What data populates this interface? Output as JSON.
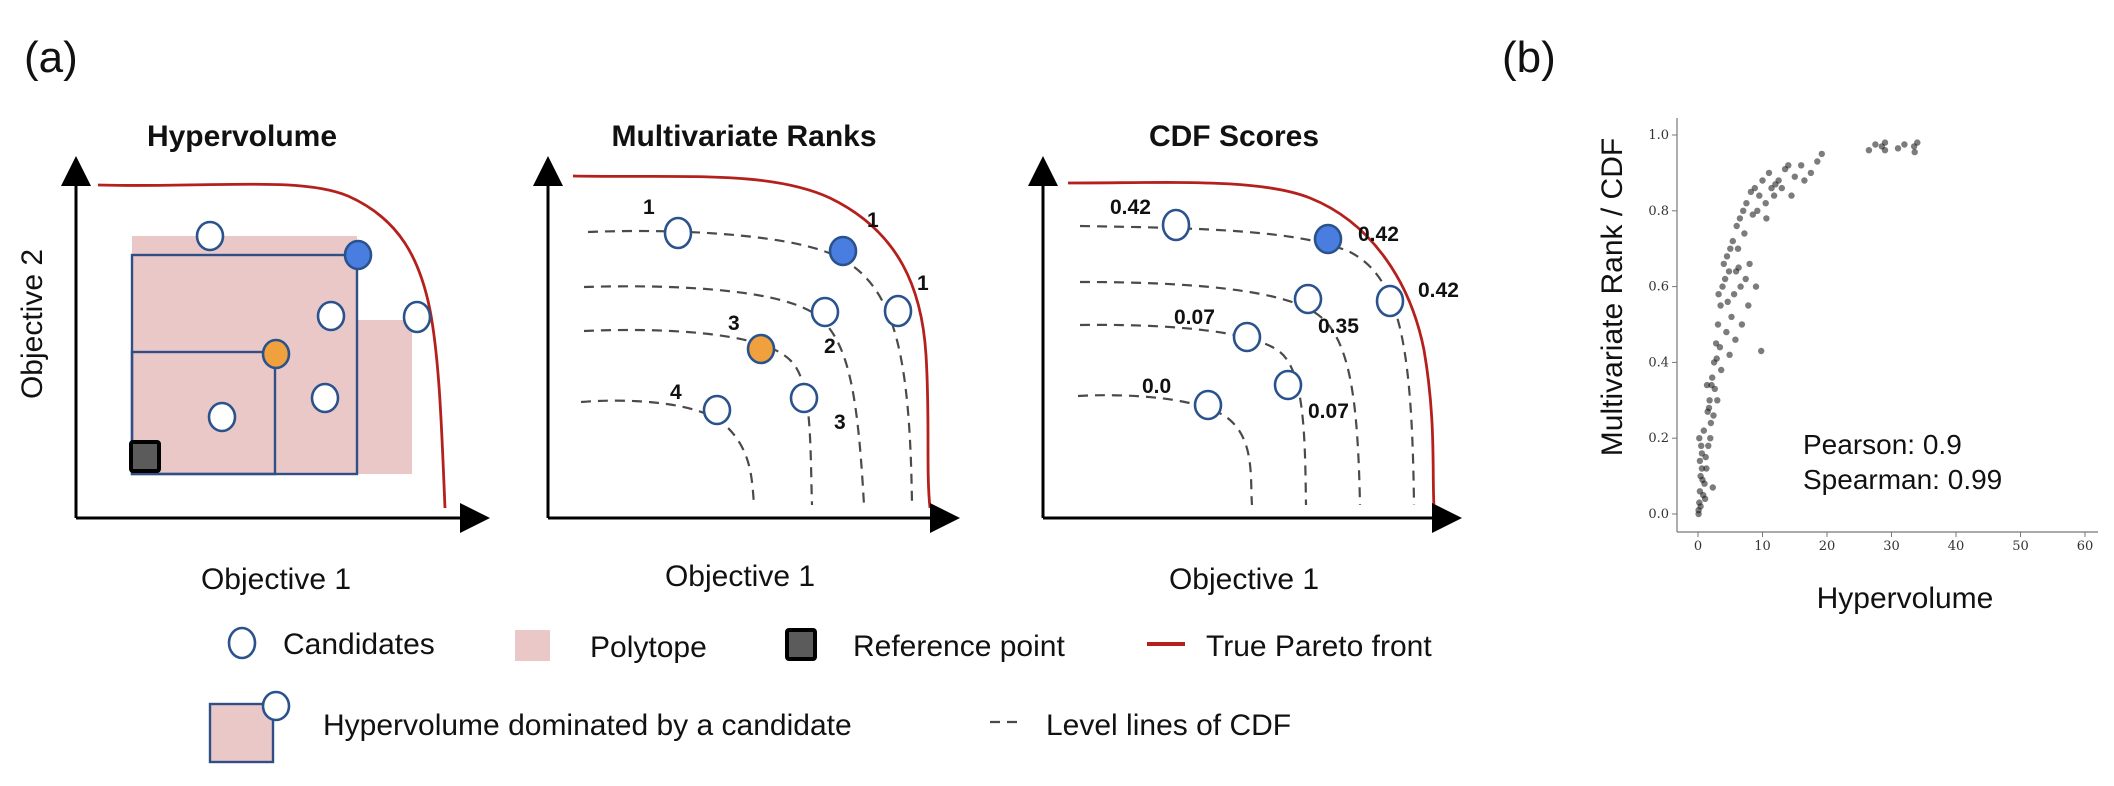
{
  "figure": {
    "label_a": "(a)",
    "label_b": "(b)"
  },
  "panel_a": {
    "hypervolume": {
      "title": "Hypervolume",
      "xlabel": "Objective 1",
      "ylabel": "Objective 2"
    },
    "ranks": {
      "title": "Multivariate Ranks",
      "xlabel": "Objective 1",
      "labels": [
        "1",
        "1",
        "1",
        "3",
        "2",
        "4",
        "3"
      ]
    },
    "cdf": {
      "title": "CDF Scores",
      "xlabel": "Objective 1",
      "labels": [
        "0.42",
        "0.42",
        "0.42",
        "0.07",
        "0.35",
        "0.0",
        "0.07"
      ]
    },
    "legend": {
      "candidates": "Candidates",
      "polytope": "Polytope",
      "reference": "Reference point",
      "pareto": "True Pareto front",
      "dominated": "Hypervolume dominated by a candidate",
      "level_lines": "Level lines of CDF"
    }
  },
  "chart_data": {
    "type": "scatter",
    "title": "",
    "xlabel": "Hypervolume",
    "ylabel": "Multivariate Rank / CDF",
    "xlim": [
      -2,
      61
    ],
    "ylim": [
      -0.03,
      1.03
    ],
    "xticks": [
      "0",
      "10",
      "20",
      "30",
      "40",
      "50",
      "60"
    ],
    "yticks": [
      "0.0",
      "0.2",
      "0.4",
      "0.6",
      "0.8",
      "1.0"
    ],
    "pearson_text": "Pearson: 0.9",
    "spearman_text": "Spearman: 0.99",
    "series": [
      {
        "name": "candidates",
        "points": [
          [
            0.1,
            0.01
          ],
          [
            0.2,
            0.03
          ],
          [
            0.3,
            0.06
          ],
          [
            0.4,
            0.1
          ],
          [
            0.3,
            0.14
          ],
          [
            0.5,
            0.18
          ],
          [
            0.6,
            0.12
          ],
          [
            0.2,
            0.2
          ],
          [
            0.8,
            0.05
          ],
          [
            1.0,
            0.08
          ],
          [
            0.9,
            0.22
          ],
          [
            1.2,
            0.15
          ],
          [
            1.5,
            0.27
          ],
          [
            1.8,
            0.3
          ],
          [
            2.0,
            0.24
          ],
          [
            1.4,
            0.34
          ],
          [
            2.5,
            0.4
          ],
          [
            2.2,
            0.36
          ],
          [
            2.8,
            0.45
          ],
          [
            3.1,
            0.5
          ],
          [
            2.6,
            0.33
          ],
          [
            3.5,
            0.55
          ],
          [
            3.2,
            0.58
          ],
          [
            3.8,
            0.6
          ],
          [
            4.2,
            0.62
          ],
          [
            4.0,
            0.66
          ],
          [
            4.5,
            0.68
          ],
          [
            5.0,
            0.7
          ],
          [
            5.4,
            0.72
          ],
          [
            4.8,
            0.64
          ],
          [
            6.0,
            0.76
          ],
          [
            6.5,
            0.78
          ],
          [
            7.0,
            0.8
          ],
          [
            7.5,
            0.82
          ],
          [
            6.2,
            0.7
          ],
          [
            8.2,
            0.85
          ],
          [
            8.8,
            0.86
          ],
          [
            9.5,
            0.84
          ],
          [
            10.0,
            0.88
          ],
          [
            11.0,
            0.9
          ],
          [
            12.0,
            0.87
          ],
          [
            13.5,
            0.91
          ],
          [
            15.0,
            0.89
          ],
          [
            16.0,
            0.92
          ],
          [
            9.0,
            0.6
          ],
          [
            7.8,
            0.55
          ],
          [
            6.8,
            0.5
          ],
          [
            5.8,
            0.46
          ],
          [
            4.9,
            0.42
          ],
          [
            9.8,
            0.43
          ],
          [
            3.0,
            0.3
          ],
          [
            2.4,
            0.26
          ],
          [
            1.9,
            0.2
          ],
          [
            1.3,
            0.12
          ],
          [
            0.7,
            0.09
          ],
          [
            3.6,
            0.38
          ],
          [
            4.4,
            0.48
          ],
          [
            5.6,
            0.58
          ],
          [
            6.3,
            0.65
          ],
          [
            7.2,
            0.74
          ],
          [
            8.5,
            0.79
          ],
          [
            10.5,
            0.82
          ],
          [
            11.8,
            0.84
          ],
          [
            13.0,
            0.86
          ],
          [
            14.5,
            0.84
          ],
          [
            16.5,
            0.88
          ],
          [
            17.5,
            0.9
          ],
          [
            18.5,
            0.93
          ],
          [
            19.2,
            0.95
          ],
          [
            26.5,
            0.96
          ],
          [
            27.5,
            0.975
          ],
          [
            28.5,
            0.97
          ],
          [
            29.0,
            0.96
          ],
          [
            31.0,
            0.965
          ],
          [
            32.0,
            0.975
          ],
          [
            33.5,
            0.97
          ],
          [
            34.0,
            0.98
          ],
          [
            33.6,
            0.955
          ],
          [
            29.0,
            0.98
          ],
          [
            0.1,
            0.0
          ],
          [
            0.4,
            0.02
          ],
          [
            1.1,
            0.04
          ],
          [
            2.3,
            0.07
          ],
          [
            0.6,
            0.16
          ],
          [
            1.6,
            0.18
          ],
          [
            2.9,
            0.41
          ],
          [
            5.2,
            0.52
          ],
          [
            6.6,
            0.6
          ],
          [
            8.0,
            0.66
          ],
          [
            7.4,
            0.62
          ],
          [
            12.5,
            0.88
          ],
          [
            14.0,
            0.92
          ],
          [
            11.4,
            0.86
          ],
          [
            9.2,
            0.8
          ],
          [
            10.6,
            0.78
          ],
          [
            3.4,
            0.44
          ],
          [
            4.6,
            0.56
          ],
          [
            5.9,
            0.64
          ],
          [
            2.1,
            0.34
          ],
          [
            1.7,
            0.28
          ]
        ]
      }
    ]
  }
}
